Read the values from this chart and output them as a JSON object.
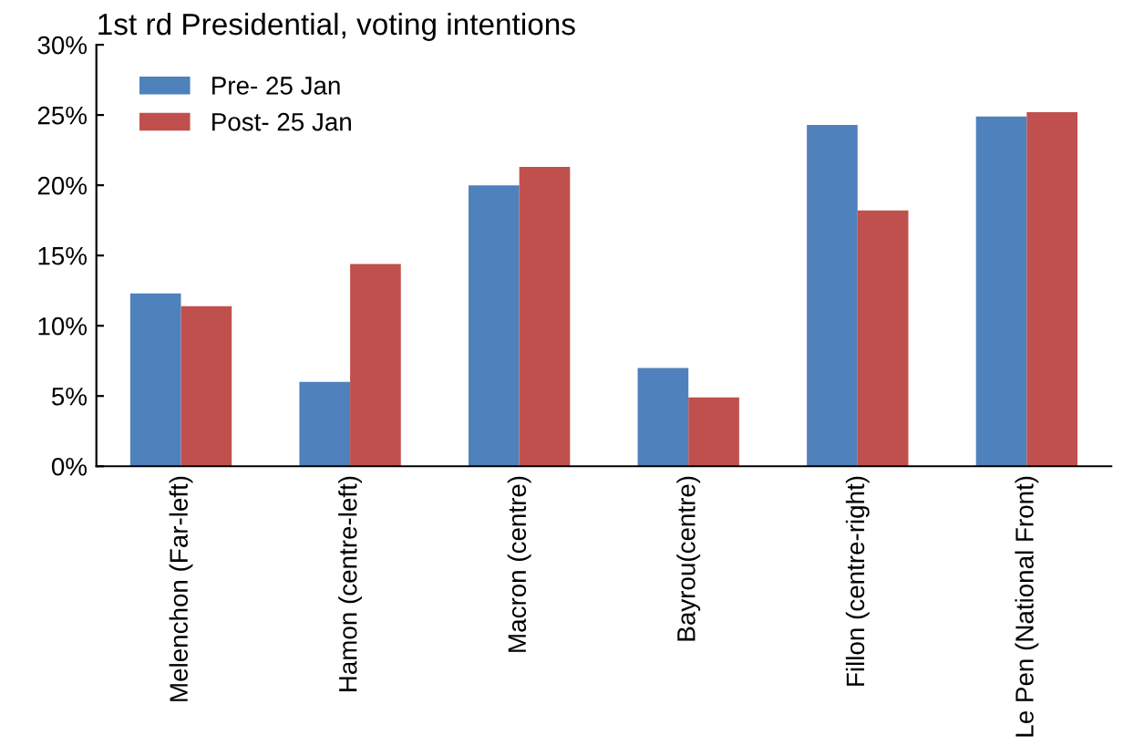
{
  "chart_data": {
    "type": "bar",
    "title": "1st rd Presidential, voting intentions",
    "categories": [
      "Melenchon (Far-left)",
      "Hamon (centre-left)",
      "Macron (centre)",
      "Bayrou(centre)",
      "Fillon (centre-right)",
      "Le Pen (National Front)"
    ],
    "series": [
      {
        "name": "Pre- 25 Jan",
        "color": "#4f81bd",
        "values": [
          12.3,
          6.0,
          20.0,
          7.0,
          24.3,
          24.9
        ]
      },
      {
        "name": "Post- 25 Jan",
        "color": "#c0504d",
        "values": [
          11.4,
          14.4,
          21.3,
          4.9,
          18.2,
          25.2
        ]
      }
    ],
    "ylim": [
      0,
      30
    ],
    "yticks": [
      {
        "value": 0,
        "label": "0%"
      },
      {
        "value": 5,
        "label": "5%"
      },
      {
        "value": 10,
        "label": "10%"
      },
      {
        "value": 15,
        "label": "15%"
      },
      {
        "value": 20,
        "label": "20%"
      },
      {
        "value": 25,
        "label": "25%"
      },
      {
        "value": 30,
        "label": "30%"
      }
    ],
    "legend": "top left",
    "grid": false
  }
}
